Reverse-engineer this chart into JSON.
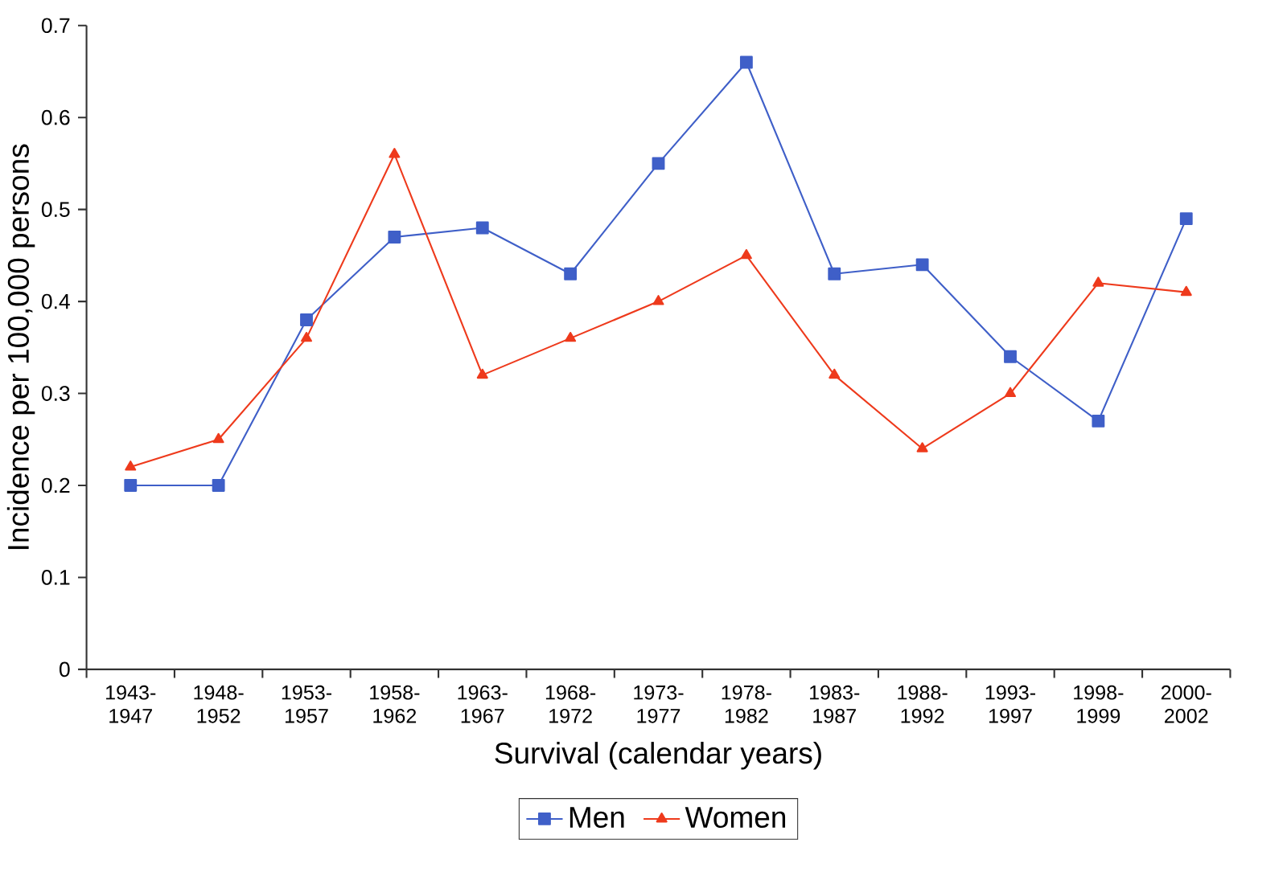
{
  "chart_data": {
    "type": "line",
    "xlabel": "Survival (calendar years)",
    "ylabel": "Incidence per 100,000 persons",
    "categories": [
      "1943-1947",
      "1948-1952",
      "1953-1957",
      "1958-1962",
      "1963-1967",
      "1968-1972",
      "1973-1977",
      "1978-1982",
      "1983-1987",
      "1988-1992",
      "1993-1997",
      "1998-1999",
      "2000-2002"
    ],
    "series": [
      {
        "name": "Men",
        "color": "#3f5fc8",
        "marker": "square",
        "values": [
          0.2,
          0.2,
          0.38,
          0.47,
          0.48,
          0.43,
          0.55,
          0.66,
          0.43,
          0.44,
          0.34,
          0.27,
          0.49
        ]
      },
      {
        "name": "Women",
        "color": "#ee3a1c",
        "marker": "triangle",
        "values": [
          0.22,
          0.25,
          0.36,
          0.56,
          0.32,
          0.36,
          0.4,
          0.45,
          0.32,
          0.24,
          0.3,
          0.42,
          0.41
        ]
      }
    ],
    "ylim": [
      0,
      0.7
    ],
    "yticks": [
      0,
      0.1,
      0.2,
      0.3,
      0.4,
      0.5,
      0.6,
      0.7
    ],
    "grid": false,
    "legend": "bottom",
    "line_style": "solid"
  }
}
